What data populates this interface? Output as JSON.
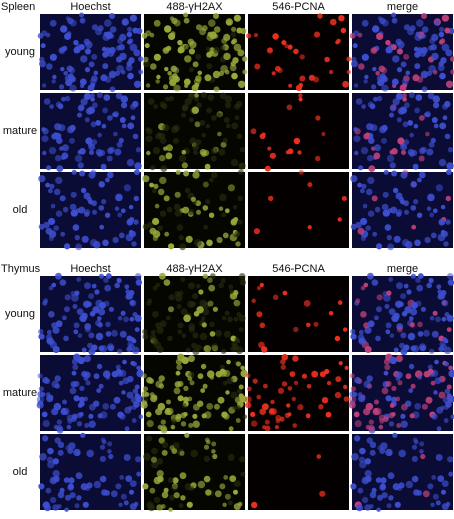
{
  "panels": [
    {
      "tissue": "Spleen",
      "columns": [
        "Hoechst",
        "488-γH2AX",
        "546-PCNA",
        "merge"
      ],
      "rows": [
        "young",
        "mature",
        "old"
      ]
    },
    {
      "tissue": "Thymus",
      "columns": [
        "Hoechst",
        "488-γH2AX",
        "546-PCNA",
        "merge"
      ],
      "rows": [
        "young",
        "mature",
        "old"
      ]
    }
  ]
}
